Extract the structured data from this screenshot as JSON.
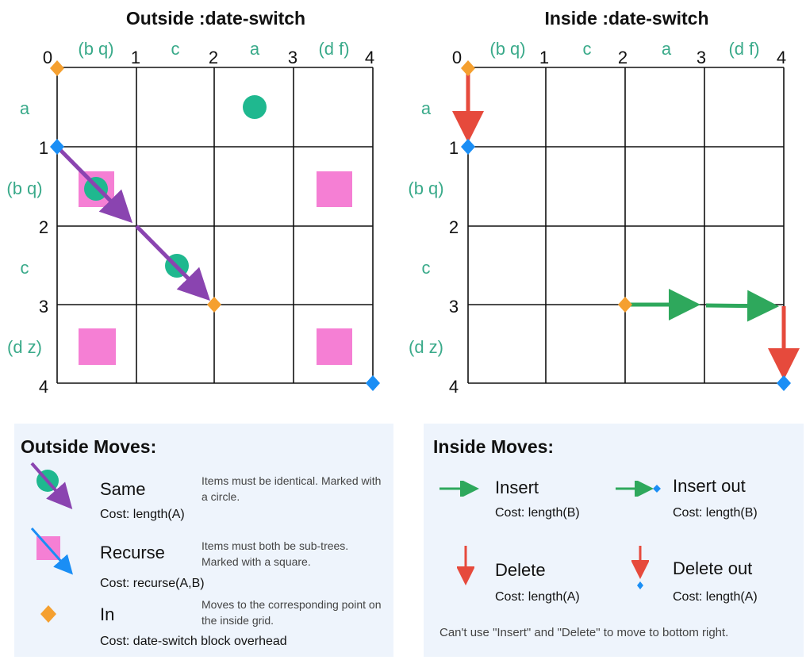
{
  "left": {
    "title": "Outside :date-switch",
    "col_nums": [
      "0",
      "1",
      "2",
      "3",
      "4"
    ],
    "row_nums": [
      "0",
      "1",
      "2",
      "3",
      "4"
    ],
    "col_labels": [
      "(b q)",
      "c",
      "a",
      "(d f)"
    ],
    "row_labels": [
      "a",
      "(b q)",
      "c",
      "(d z)"
    ]
  },
  "right": {
    "title": "Inside :date-switch",
    "col_nums": [
      "0",
      "1",
      "2",
      "3",
      "4"
    ],
    "row_nums": [
      "0",
      "1",
      "2",
      "3",
      "4"
    ],
    "col_labels": [
      "(b q)",
      "c",
      "a",
      "(d f)"
    ],
    "row_labels": [
      "a",
      "(b q)",
      "c",
      "(d z)"
    ]
  },
  "outside_panel": {
    "heading": "Outside Moves:",
    "moves": [
      {
        "name": "Same",
        "cost": "Cost: length(A)",
        "note": "Items must be identical. Marked with a circle."
      },
      {
        "name": "Recurse",
        "cost": "Cost: recurse(A,B)",
        "note": "Items must both be sub-trees. Marked with a square."
      },
      {
        "name": "In",
        "cost": "Cost: date-switch block overhead",
        "note": "Moves to the corresponding point on the inside grid."
      }
    ]
  },
  "inside_panel": {
    "heading": "Inside Moves:",
    "moves": [
      {
        "name": "Insert",
        "cost": "Cost: length(B)"
      },
      {
        "name": "Insert out",
        "cost": "Cost: length(B)"
      },
      {
        "name": "Delete",
        "cost": "Cost: length(A)"
      },
      {
        "name": "Delete out",
        "cost": "Cost: length(A)"
      }
    ],
    "footnote": "Can't use \"Insert\" and \"Delete\" to move to bottom right."
  },
  "colors": {
    "teal_label": "#3aaa8a",
    "circle": "#1fb88f",
    "square": "#f57fd4",
    "in_diamond": "#f5a030",
    "out_diamond": "#1a8ef5",
    "purple_arrow": "#8a44b0",
    "blue_arrow": "#1a8ef5",
    "green_arrow": "#2ea85c",
    "red_arrow": "#e64a3c",
    "panel_bg": "#eef4fc"
  }
}
